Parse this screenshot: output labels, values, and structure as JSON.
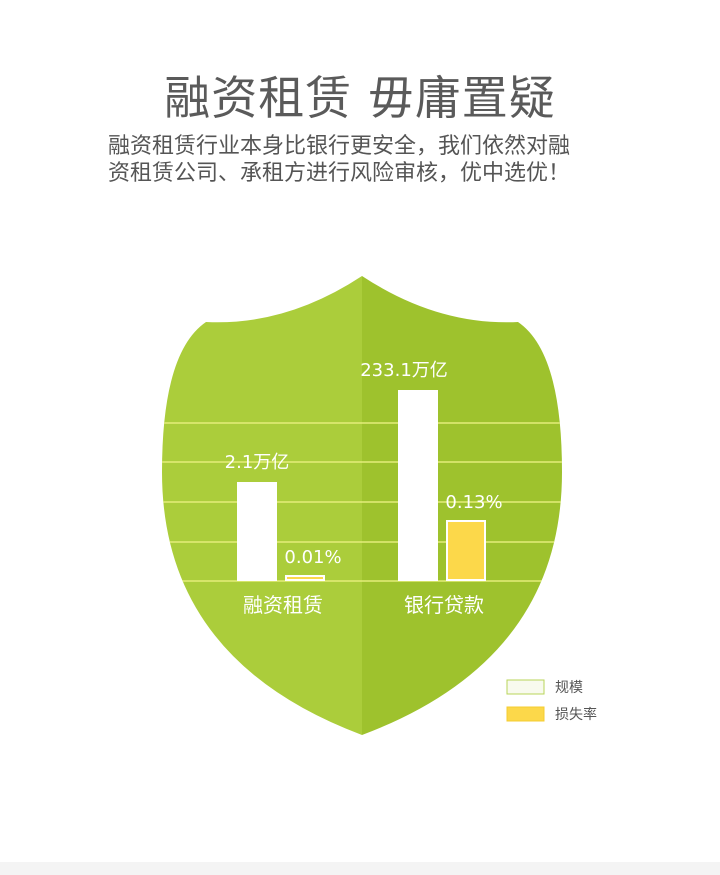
{
  "header": {
    "title": "融资租赁 毋庸置疑",
    "subtitle_lines": [
      "融资租赁行业本身比银行更安全，我们依然对融",
      "资租赁公司、承租方进行风险审核，优中选优！"
    ]
  },
  "colors": {
    "shield_left": "#abcd3b",
    "shield_right": "#9ec22d",
    "grid_line": "#e4ed7a",
    "scale_bar": "#ffffff",
    "loss_bar": "#fcd84a",
    "loss_bar_border": "#ffffff"
  },
  "chart_data": {
    "type": "bar",
    "categories": [
      "融资租赁",
      "银行贷款"
    ],
    "series": [
      {
        "name": "规模",
        "values": [
          2.1,
          233.1
        ],
        "labels": [
          "2.1万亿",
          "233.1万亿"
        ]
      },
      {
        "name": "损失率",
        "values": [
          0.01,
          0.13
        ],
        "labels": [
          "0.01%",
          "0.13%"
        ]
      }
    ],
    "grid": true,
    "legend_position": "bottom-right"
  }
}
